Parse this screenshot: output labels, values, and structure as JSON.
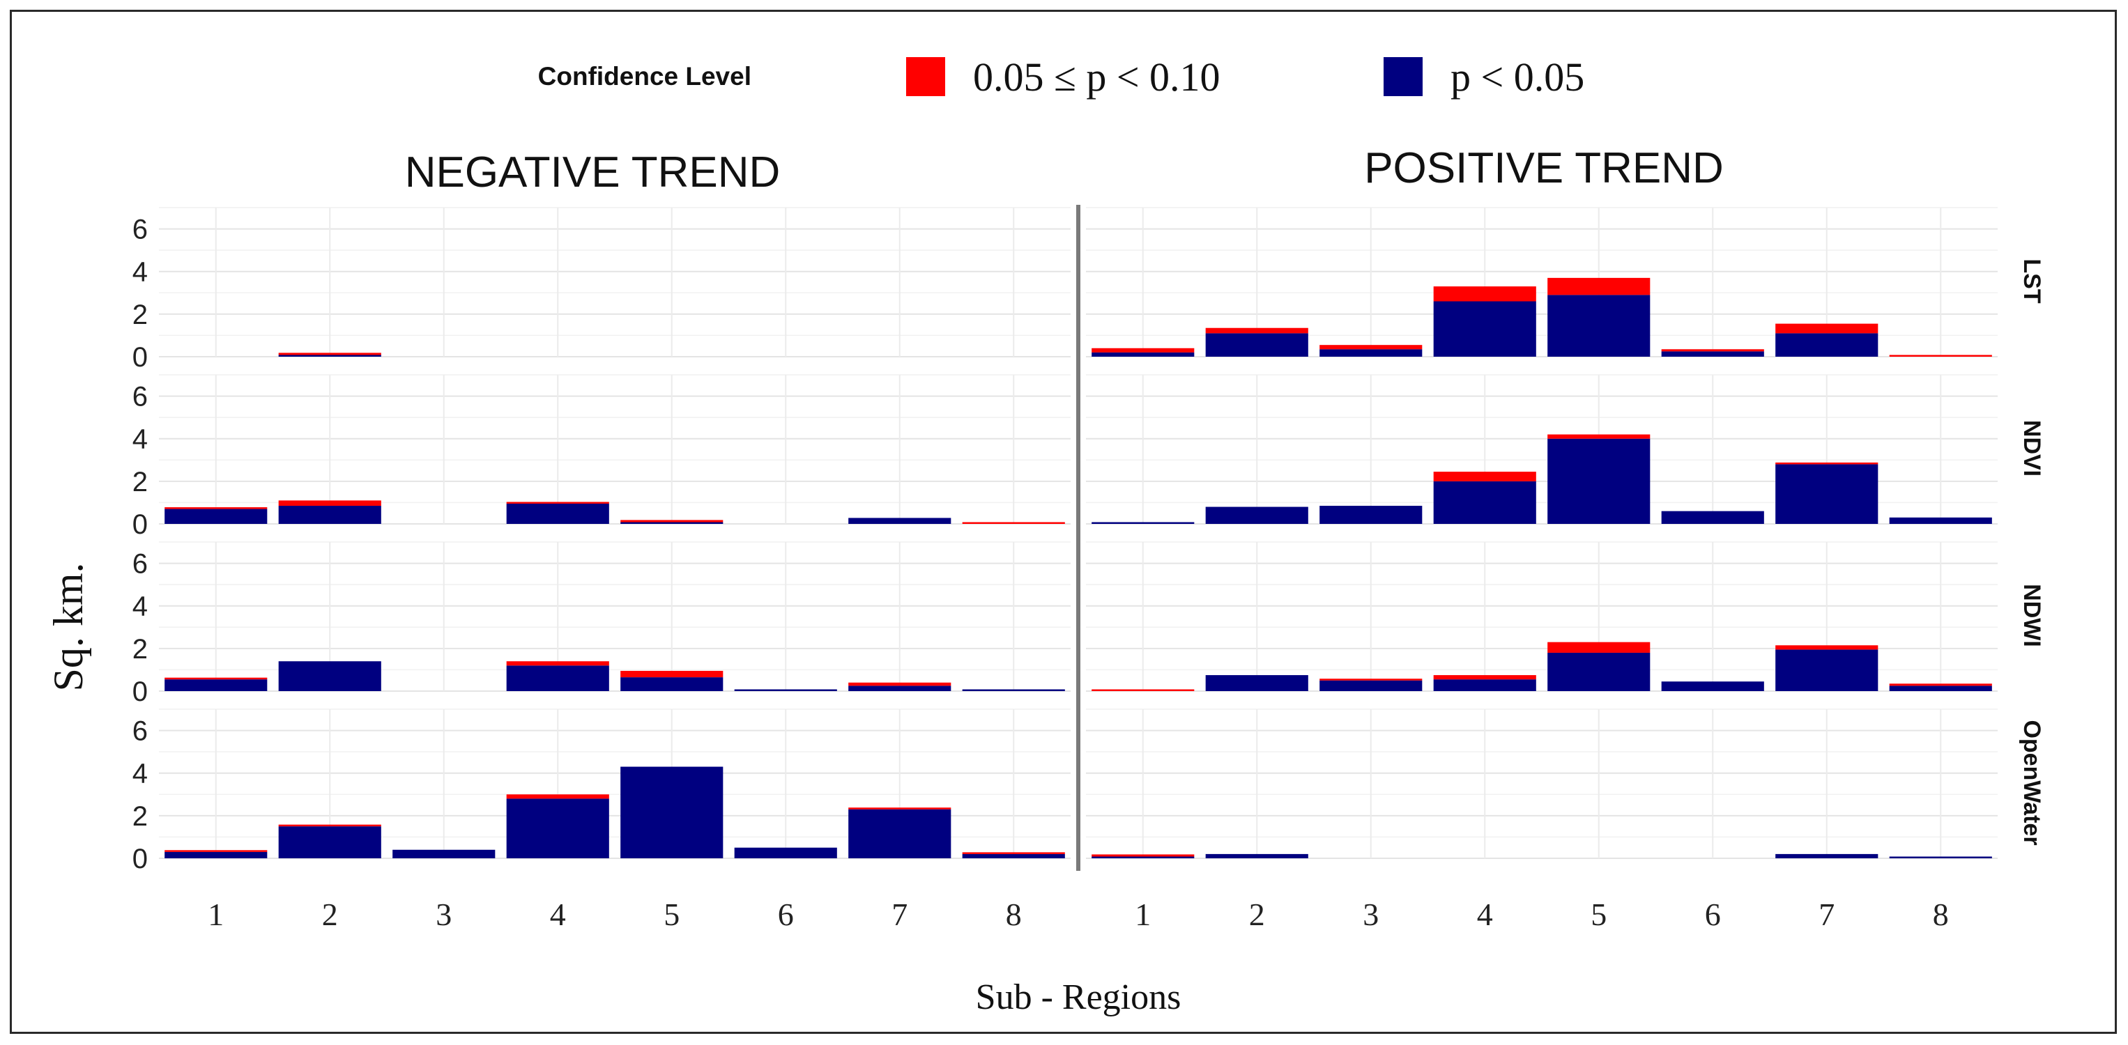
{
  "chart_data": {
    "type": "bar",
    "stacked": true,
    "legend": {
      "title": "Confidence Level",
      "entries": [
        {
          "label": "0.05 ≤ p < 0.10",
          "color": "#ff0000",
          "key": "p10"
        },
        {
          "label": "p < 0.05",
          "color": "#000080",
          "key": "p05"
        }
      ],
      "position": "top"
    },
    "xlabel": "Sub - Regions",
    "ylabel": "Sq. km.",
    "ylim": [
      0,
      7
    ],
    "yticks": [
      "0",
      "2",
      "4",
      "6"
    ],
    "categories": [
      "1",
      "2",
      "3",
      "4",
      "5",
      "6",
      "7",
      "8"
    ],
    "columns": [
      {
        "title": "NEGATIVE TREND",
        "key": "negative"
      },
      {
        "title": "POSITIVE TREND",
        "key": "positive"
      }
    ],
    "rows": [
      {
        "label": "LST",
        "negative": {
          "p05": [
            0,
            0.05,
            0,
            0,
            0,
            0,
            0,
            0
          ],
          "p10": [
            0,
            0.1,
            0,
            0,
            0,
            0,
            0,
            0
          ]
        },
        "positive": {
          "p05": [
            0.2,
            1.1,
            0.35,
            2.6,
            2.9,
            0.25,
            1.1,
            0
          ],
          "p10": [
            0.2,
            0.25,
            0.2,
            0.7,
            0.8,
            0.1,
            0.45,
            0.08
          ]
        }
      },
      {
        "label": "NDVI",
        "negative": {
          "p05": [
            0.7,
            0.85,
            0,
            0.95,
            0.05,
            0,
            0.28,
            0
          ],
          "p10": [
            0.05,
            0.25,
            0,
            0.05,
            0.1,
            0,
            0,
            0.08
          ]
        },
        "positive": {
          "p05": [
            0.07,
            0.8,
            0.85,
            2.0,
            4.0,
            0.6,
            2.8,
            0.3
          ],
          "p10": [
            0,
            0,
            0,
            0.45,
            0.2,
            0,
            0.05,
            0
          ]
        }
      },
      {
        "label": "NDWI",
        "negative": {
          "p05": [
            0.55,
            1.4,
            0,
            1.2,
            0.65,
            0.05,
            0.25,
            0.05
          ],
          "p10": [
            0.05,
            0,
            0,
            0.2,
            0.3,
            0,
            0.15,
            0
          ]
        },
        "positive": {
          "p05": [
            0,
            0.75,
            0.5,
            0.55,
            1.8,
            0.45,
            1.95,
            0.25
          ],
          "p10": [
            0.08,
            0,
            0.05,
            0.2,
            0.5,
            0,
            0.2,
            0.1
          ]
        }
      },
      {
        "label": "OpenWater",
        "negative": {
          "p05": [
            0.3,
            1.5,
            0.4,
            2.8,
            4.3,
            0.5,
            2.3,
            0.2
          ],
          "p10": [
            0.05,
            0.05,
            0,
            0.2,
            0,
            0,
            0.05,
            0.05
          ]
        },
        "positive": {
          "p05": [
            0.05,
            0.2,
            0,
            0,
            0,
            0,
            0.2,
            0.05
          ],
          "p10": [
            0.1,
            0,
            0,
            0,
            0,
            0,
            0,
            0
          ]
        }
      }
    ]
  }
}
